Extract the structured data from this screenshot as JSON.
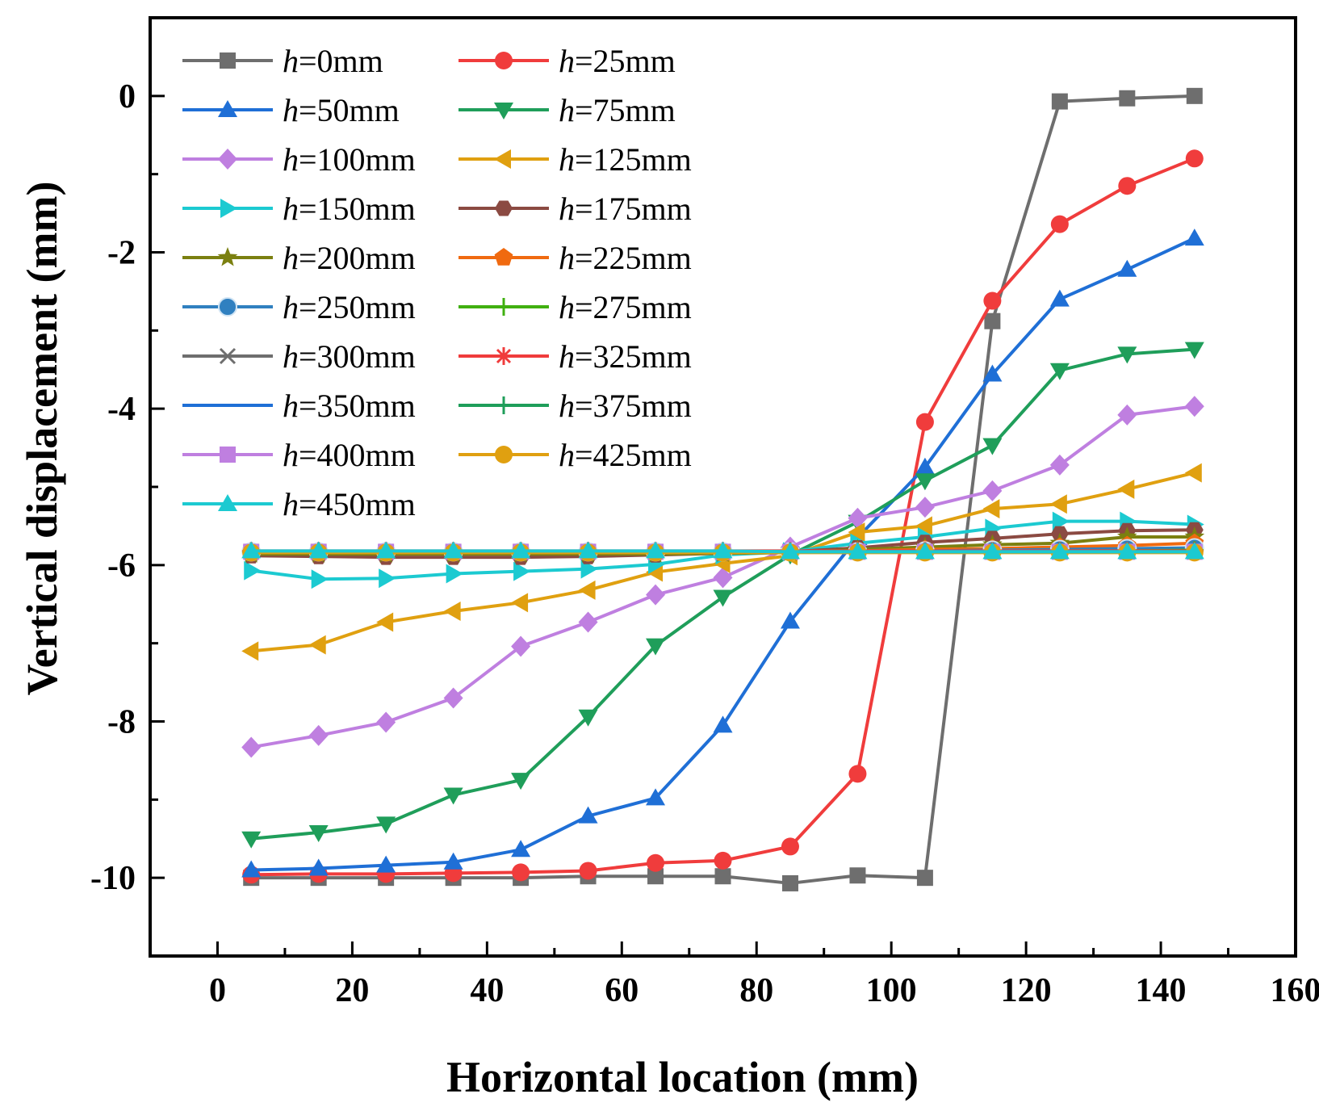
{
  "chart_data": {
    "type": "line",
    "xlabel": "Horizontal location (mm)",
    "ylabel": "Vertical displacement (mm)",
    "xlim": [
      -10,
      160
    ],
    "ylim": [
      -11,
      1
    ],
    "xticks": [
      0,
      20,
      40,
      60,
      80,
      100,
      120,
      140,
      160
    ],
    "yticks": [
      0,
      -2,
      -4,
      -6,
      -8,
      -10
    ],
    "xtick_labels": [
      "0",
      "20",
      "40",
      "60",
      "80",
      "100",
      "120",
      "140",
      "160"
    ],
    "ytick_labels": [
      "0",
      "-2",
      "-4",
      "-6",
      "-8",
      "-10"
    ],
    "legend_position": "top-left",
    "legend_columns": 2,
    "legend_prefix": "h",
    "x": [
      5,
      15,
      25,
      35,
      45,
      55,
      65,
      75,
      85,
      95,
      105,
      115,
      125,
      135,
      145
    ],
    "series": [
      {
        "name": "=0mm",
        "color": "#6e6e6e",
        "marker": "square",
        "values": [
          -10.0,
          -10.0,
          -10.0,
          -10.0,
          -10.0,
          -9.98,
          -9.98,
          -9.98,
          -10.07,
          -9.97,
          -10.0,
          -2.88,
          -0.07,
          -0.03,
          0.0
        ]
      },
      {
        "name": "=25mm",
        "color": "#f03c3c",
        "marker": "circle",
        "values": [
          -9.96,
          -9.95,
          -9.95,
          -9.94,
          -9.93,
          -9.91,
          -9.81,
          -9.78,
          -9.6,
          -8.67,
          -4.17,
          -2.62,
          -1.64,
          -1.15,
          -0.8
        ]
      },
      {
        "name": "=50mm",
        "color": "#1f6fd6",
        "marker": "triangle-up",
        "values": [
          -9.9,
          -9.88,
          -9.84,
          -9.8,
          -9.64,
          -9.21,
          -8.98,
          -8.05,
          -6.72,
          -5.65,
          -4.75,
          -3.56,
          -2.6,
          -2.22,
          -1.82
        ]
      },
      {
        "name": "=75mm",
        "color": "#1f9e5a",
        "marker": "triangle-down",
        "values": [
          -9.5,
          -9.42,
          -9.31,
          -8.94,
          -8.75,
          -7.94,
          -7.03,
          -6.41,
          -5.87,
          -5.45,
          -4.92,
          -4.47,
          -3.51,
          -3.3,
          -3.24
        ]
      },
      {
        "name": "=100mm",
        "color": "#bf7fe0",
        "marker": "diamond",
        "values": [
          -8.33,
          -8.18,
          -8.01,
          -7.7,
          -7.04,
          -6.73,
          -6.38,
          -6.16,
          -5.77,
          -5.4,
          -5.26,
          -5.05,
          -4.72,
          -4.08,
          -3.97
        ]
      },
      {
        "name": "=125mm",
        "color": "#e0a010",
        "marker": "triangle-left",
        "values": [
          -7.1,
          -7.02,
          -6.73,
          -6.59,
          -6.48,
          -6.32,
          -6.09,
          -5.98,
          -5.88,
          -5.58,
          -5.5,
          -5.28,
          -5.22,
          -5.03,
          -4.82
        ]
      },
      {
        "name": "=150mm",
        "color": "#1ccad1",
        "marker": "triangle-right",
        "values": [
          -6.07,
          -6.18,
          -6.17,
          -6.11,
          -6.08,
          -6.05,
          -5.99,
          -5.87,
          -5.83,
          -5.72,
          -5.64,
          -5.53,
          -5.44,
          -5.44,
          -5.48
        ]
      },
      {
        "name": "=175mm",
        "color": "#8b4a42",
        "marker": "hexagon",
        "values": [
          -5.88,
          -5.89,
          -5.9,
          -5.9,
          -5.9,
          -5.89,
          -5.87,
          -5.85,
          -5.83,
          -5.78,
          -5.71,
          -5.66,
          -5.6,
          -5.56,
          -5.55
        ]
      },
      {
        "name": "=200mm",
        "color": "#7b8010",
        "marker": "star",
        "values": [
          -5.86,
          -5.86,
          -5.86,
          -5.86,
          -5.86,
          -5.86,
          -5.86,
          -5.85,
          -5.84,
          -5.8,
          -5.77,
          -5.74,
          -5.72,
          -5.64,
          -5.64
        ]
      },
      {
        "name": "=225mm",
        "color": "#f06a10",
        "marker": "pentagon",
        "values": [
          -5.84,
          -5.84,
          -5.84,
          -5.84,
          -5.84,
          -5.84,
          -5.84,
          -5.84,
          -5.83,
          -5.82,
          -5.8,
          -5.79,
          -5.77,
          -5.75,
          -5.72
        ]
      },
      {
        "name": "=250mm",
        "color": "#3080c0",
        "marker": "sphere",
        "values": [
          -5.83,
          -5.83,
          -5.83,
          -5.83,
          -5.83,
          -5.83,
          -5.83,
          -5.83,
          -5.83,
          -5.83,
          -5.82,
          -5.81,
          -5.8,
          -5.79,
          -5.78
        ]
      },
      {
        "name": "=275mm",
        "color": "#40b010",
        "marker": "plus",
        "values": [
          -5.83,
          -5.83,
          -5.83,
          -5.83,
          -5.83,
          -5.83,
          -5.83,
          -5.83,
          -5.83,
          -5.83,
          -5.83,
          -5.83,
          -5.82,
          -5.82,
          -5.81
        ]
      },
      {
        "name": "=300mm",
        "color": "#6e6e6e",
        "marker": "cross",
        "values": [
          -5.83,
          -5.83,
          -5.83,
          -5.83,
          -5.83,
          -5.83,
          -5.83,
          -5.83,
          -5.83,
          -5.83,
          -5.83,
          -5.83,
          -5.83,
          -5.83,
          -5.83
        ]
      },
      {
        "name": "=325mm",
        "color": "#f03c3c",
        "marker": "asterisk",
        "values": [
          -5.82,
          -5.82,
          -5.82,
          -5.82,
          -5.82,
          -5.82,
          -5.82,
          -5.82,
          -5.82,
          -5.82,
          -5.82,
          -5.82,
          -5.82,
          -5.82,
          -5.82
        ]
      },
      {
        "name": "=350mm",
        "color": "#1f6fd6",
        "marker": "none",
        "values": [
          -5.83,
          -5.83,
          -5.83,
          -5.83,
          -5.83,
          -5.83,
          -5.83,
          -5.83,
          -5.83,
          -5.83,
          -5.83,
          -5.83,
          -5.83,
          -5.83,
          -5.83
        ]
      },
      {
        "name": "=375mm",
        "color": "#1f9e5a",
        "marker": "vline",
        "values": [
          -5.83,
          -5.83,
          -5.83,
          -5.83,
          -5.83,
          -5.83,
          -5.83,
          -5.83,
          -5.83,
          -5.83,
          -5.83,
          -5.83,
          -5.83,
          -5.83,
          -5.83
        ]
      },
      {
        "name": "=400mm",
        "color": "#bf7fe0",
        "marker": "square",
        "values": [
          -5.83,
          -5.83,
          -5.83,
          -5.83,
          -5.83,
          -5.83,
          -5.83,
          -5.83,
          -5.83,
          -5.83,
          -5.83,
          -5.83,
          -5.83,
          -5.83,
          -5.83
        ]
      },
      {
        "name": "=425mm",
        "color": "#e0a010",
        "marker": "circle",
        "values": [
          -5.84,
          -5.84,
          -5.84,
          -5.84,
          -5.84,
          -5.84,
          -5.84,
          -5.84,
          -5.84,
          -5.84,
          -5.84,
          -5.84,
          -5.84,
          -5.84,
          -5.84
        ]
      },
      {
        "name": "=450mm",
        "color": "#1ccad1",
        "marker": "triangle-up",
        "values": [
          -5.82,
          -5.82,
          -5.82,
          -5.82,
          -5.82,
          -5.82,
          -5.82,
          -5.82,
          -5.83,
          -5.83,
          -5.83,
          -5.83,
          -5.83,
          -5.83,
          -5.83
        ]
      }
    ]
  }
}
